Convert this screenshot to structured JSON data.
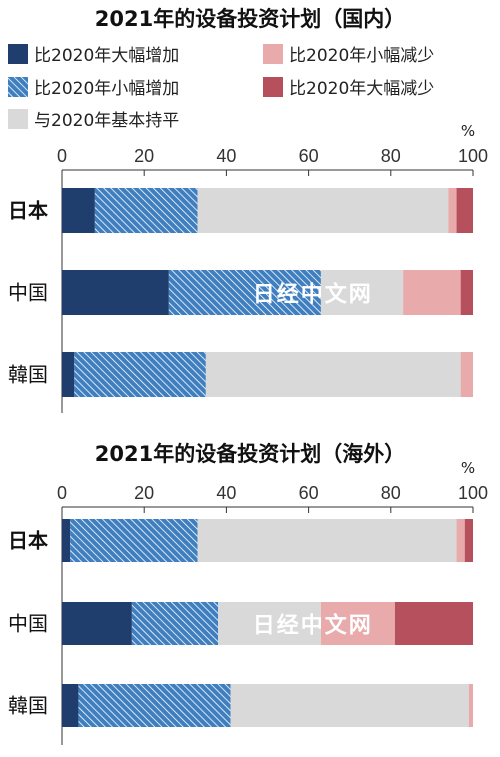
{
  "colors": {
    "large_increase": "#1f3e6d",
    "small_increase": "#3f7fc0",
    "flat": "#d9d9d9",
    "small_decrease": "#e8aaaa",
    "large_decrease": "#b5505c",
    "watermark": "#ffffff"
  },
  "legend": [
    {
      "key": "large_increase",
      "label": "比2020年大幅增加",
      "pattern": "solid"
    },
    {
      "key": "small_decrease",
      "label": "比2020年小幅减少",
      "pattern": "solid"
    },
    {
      "key": "small_increase",
      "label": "比2020年小幅增加",
      "pattern": "hatch"
    },
    {
      "key": "large_decrease",
      "label": "比2020年大幅减少",
      "pattern": "solid"
    },
    {
      "key": "flat",
      "label": "与2020年基本持平",
      "pattern": "solid"
    }
  ],
  "watermark": "日经中文网",
  "chart_data": [
    {
      "type": "bar",
      "orientation": "horizontal",
      "stacked": true,
      "title": "2021年的设备投资计划（国内）",
      "unit": "%",
      "xlim": [
        0,
        100
      ],
      "ticks": [
        "0",
        "20",
        "40",
        "60",
        "80",
        "100"
      ],
      "categories": [
        "日本",
        "中国",
        "韓国"
      ],
      "series": [
        {
          "name": "比2020年大幅增加",
          "key": "large_increase",
          "values": [
            8,
            26,
            3
          ]
        },
        {
          "name": "比2020年小幅增加",
          "key": "small_increase",
          "values": [
            25,
            37,
            32
          ]
        },
        {
          "name": "与2020年基本持平",
          "key": "flat",
          "values": [
            61,
            20,
            62
          ]
        },
        {
          "name": "比2020年小幅减少",
          "key": "small_decrease",
          "values": [
            2,
            14,
            3
          ]
        },
        {
          "name": "比2020年大幅减少",
          "key": "large_decrease",
          "values": [
            4,
            3,
            0
          ]
        }
      ]
    },
    {
      "type": "bar",
      "orientation": "horizontal",
      "stacked": true,
      "title": "2021年的设备投资计划（海外）",
      "unit": "%",
      "xlim": [
        0,
        100
      ],
      "ticks": [
        "0",
        "20",
        "40",
        "60",
        "80",
        "100"
      ],
      "categories": [
        "日本",
        "中国",
        "韓国"
      ],
      "series": [
        {
          "name": "比2020年大幅增加",
          "key": "large_increase",
          "values": [
            2,
            17,
            4
          ]
        },
        {
          "name": "比2020年小幅增加",
          "key": "small_increase",
          "values": [
            31,
            21,
            37
          ]
        },
        {
          "name": "与2020年基本持平",
          "key": "flat",
          "values": [
            63,
            25,
            58
          ]
        },
        {
          "name": "比2020年小幅减少",
          "key": "small_decrease",
          "values": [
            2,
            18,
            1
          ]
        },
        {
          "name": "比2020年大幅减少",
          "key": "large_decrease",
          "values": [
            2,
            19,
            0
          ]
        }
      ]
    }
  ]
}
